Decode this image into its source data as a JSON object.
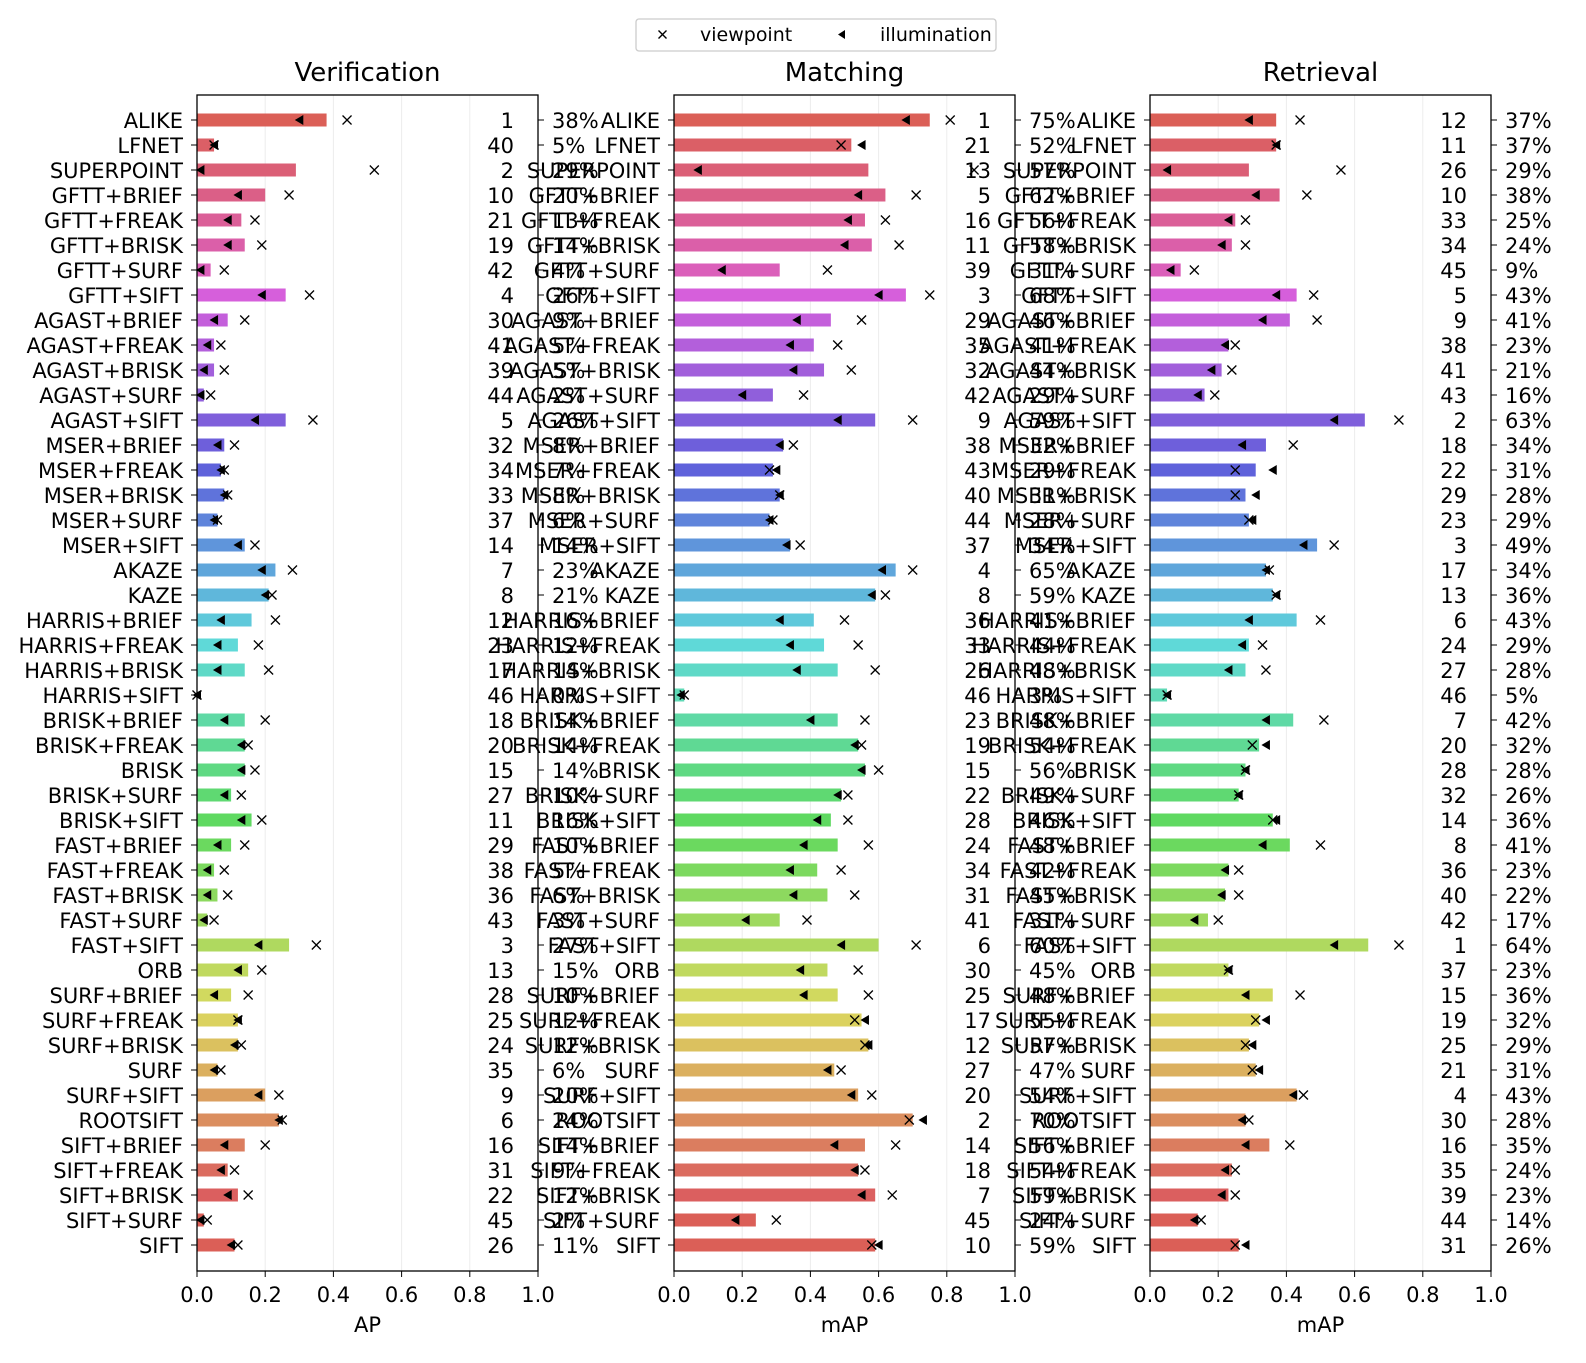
{
  "legend": {
    "entries": [
      {
        "marker": "x-marker",
        "label": "viewpoint"
      },
      {
        "marker": "left-triangle-marker",
        "label": "illumination"
      }
    ],
    "placement": "top-center"
  },
  "methods": [
    "ALIKE",
    "LFNET",
    "SUPERPOINT",
    "GFTT+BRIEF",
    "GFTT+FREAK",
    "GFTT+BRISK",
    "GFTT+SURF",
    "GFTT+SIFT",
    "AGAST+BRIEF",
    "AGAST+FREAK",
    "AGAST+BRISK",
    "AGAST+SURF",
    "AGAST+SIFT",
    "MSER+BRIEF",
    "MSER+FREAK",
    "MSER+BRISK",
    "MSER+SURF",
    "MSER+SIFT",
    "AKAZE",
    "KAZE",
    "HARRIS+BRIEF",
    "HARRIS+FREAK",
    "HARRIS+BRISK",
    "HARRIS+SIFT",
    "BRISK+BRIEF",
    "BRISK+FREAK",
    "BRISK",
    "BRISK+SURF",
    "BRISK+SIFT",
    "FAST+BRIEF",
    "FAST+FREAK",
    "FAST+BRISK",
    "FAST+SURF",
    "FAST+SIFT",
    "ORB",
    "SURF+BRIEF",
    "SURF+FREAK",
    "SURF+BRISK",
    "SURF",
    "SURF+SIFT",
    "ROOTSIFT",
    "SIFT+BRIEF",
    "SIFT+FREAK",
    "SIFT+BRISK",
    "SIFT+SURF",
    "SIFT"
  ],
  "colors": [
    "#db5f57",
    "#db5f66",
    "#db5f76",
    "#db5f87",
    "#db5f98",
    "#db5fa9",
    "#db5fba",
    "#d65fdb",
    "#c45fdb",
    "#b35fdb",
    "#a25fdb",
    "#905fdb",
    "#7f5fdb",
    "#6e5fdb",
    "#5f62db",
    "#5f73db",
    "#5f84db",
    "#5f95db",
    "#5fa6db",
    "#5fb7db",
    "#5fc9db",
    "#5fd9d8",
    "#5fd9c7",
    "#5fd9b6",
    "#5fd9a5",
    "#5fd994",
    "#5fd983",
    "#5fd972",
    "#5fd961",
    "#6bd95f",
    "#7cd95f",
    "#8dd95f",
    "#9ed95f",
    "#afd95f",
    "#c0d95f",
    "#d1d95f",
    "#dbd25f",
    "#dbc15f",
    "#dbb05f",
    "#db9f5f",
    "#db8e5f",
    "#db7d5f",
    "#db6c5f",
    "#db5f5f",
    "#db5f57",
    "#db5f57"
  ],
  "chart_data": [
    {
      "type": "bar",
      "orientation": "horizontal",
      "title": "Verification",
      "xlabel": "AP",
      "xlim": [
        0,
        1
      ],
      "xticks": [
        "0.0",
        "0.2",
        "0.4",
        "0.6",
        "0.8",
        "1.0"
      ],
      "grid": "x",
      "categories_ref": "methods",
      "values": [
        0.38,
        0.05,
        0.29,
        0.2,
        0.13,
        0.14,
        0.04,
        0.26,
        0.09,
        0.05,
        0.05,
        0.02,
        0.26,
        0.08,
        0.07,
        0.08,
        0.06,
        0.14,
        0.23,
        0.21,
        0.16,
        0.12,
        0.14,
        0.0,
        0.14,
        0.14,
        0.14,
        0.1,
        0.16,
        0.1,
        0.05,
        0.06,
        0.03,
        0.27,
        0.15,
        0.1,
        0.12,
        0.12,
        0.06,
        0.2,
        0.24,
        0.14,
        0.09,
        0.12,
        0.02,
        0.11
      ],
      "viewpoint": [
        0.44,
        0.05,
        0.52,
        0.27,
        0.17,
        0.19,
        0.08,
        0.33,
        0.14,
        0.07,
        0.08,
        0.04,
        0.34,
        0.11,
        0.08,
        0.09,
        0.06,
        0.17,
        0.28,
        0.22,
        0.23,
        0.18,
        0.21,
        0.0,
        0.2,
        0.15,
        0.17,
        0.13,
        0.19,
        0.14,
        0.08,
        0.09,
        0.05,
        0.35,
        0.19,
        0.15,
        0.12,
        0.13,
        0.07,
        0.24,
        0.25,
        0.2,
        0.11,
        0.15,
        0.03,
        0.12
      ],
      "illumination": [
        0.3,
        0.05,
        0.01,
        0.12,
        0.09,
        0.09,
        0.01,
        0.19,
        0.05,
        0.03,
        0.02,
        0.01,
        0.17,
        0.06,
        0.07,
        0.08,
        0.05,
        0.12,
        0.19,
        0.2,
        0.07,
        0.06,
        0.06,
        0.0,
        0.08,
        0.13,
        0.13,
        0.08,
        0.13,
        0.06,
        0.03,
        0.03,
        0.02,
        0.18,
        0.12,
        0.05,
        0.12,
        0.11,
        0.05,
        0.18,
        0.24,
        0.08,
        0.07,
        0.09,
        0.01,
        0.1
      ],
      "ranks": [
        "1",
        "40",
        "2",
        "10",
        "21",
        "19",
        "42",
        "4",
        "30",
        "41",
        "39",
        "44",
        "5",
        "32",
        "34",
        "33",
        "37",
        "14",
        "7",
        "8",
        "12",
        "23",
        "17",
        "46",
        "18",
        "20",
        "15",
        "27",
        "11",
        "29",
        "38",
        "36",
        "43",
        "3",
        "13",
        "28",
        "25",
        "24",
        "35",
        "9",
        "6",
        "16",
        "31",
        "22",
        "45",
        "26"
      ],
      "percents": [
        "38%",
        "5%",
        "29%",
        "20%",
        "13%",
        "14%",
        "4%",
        "26%",
        "9%",
        "5%",
        "5%",
        "2%",
        "26%",
        "8%",
        "7%",
        "8%",
        "6%",
        "14%",
        "23%",
        "21%",
        "16%",
        "12%",
        "14%",
        "0%",
        "14%",
        "14%",
        "14%",
        "10%",
        "16%",
        "10%",
        "5%",
        "6%",
        "3%",
        "27%",
        "15%",
        "10%",
        "12%",
        "12%",
        "6%",
        "20%",
        "24%",
        "14%",
        "9%",
        "12%",
        "2%",
        "11%"
      ]
    },
    {
      "type": "bar",
      "orientation": "horizontal",
      "title": "Matching",
      "xlabel": "mAP",
      "xlim": [
        0,
        1
      ],
      "xticks": [
        "0.0",
        "0.2",
        "0.4",
        "0.6",
        "0.8",
        "1.0"
      ],
      "grid": "x",
      "categories_ref": "methods",
      "values": [
        0.75,
        0.52,
        0.57,
        0.62,
        0.56,
        0.58,
        0.31,
        0.68,
        0.46,
        0.41,
        0.44,
        0.29,
        0.59,
        0.32,
        0.29,
        0.31,
        0.28,
        0.34,
        0.65,
        0.59,
        0.41,
        0.44,
        0.48,
        0.03,
        0.48,
        0.54,
        0.56,
        0.49,
        0.46,
        0.48,
        0.42,
        0.45,
        0.31,
        0.6,
        0.45,
        0.48,
        0.55,
        0.57,
        0.47,
        0.54,
        0.7,
        0.56,
        0.54,
        0.59,
        0.24,
        0.59
      ],
      "viewpoint": [
        0.81,
        0.49,
        0.88,
        0.71,
        0.62,
        0.66,
        0.45,
        0.75,
        0.55,
        0.48,
        0.52,
        0.38,
        0.7,
        0.35,
        0.28,
        0.31,
        0.29,
        0.37,
        0.7,
        0.62,
        0.5,
        0.54,
        0.59,
        0.03,
        0.56,
        0.55,
        0.6,
        0.51,
        0.51,
        0.57,
        0.49,
        0.53,
        0.39,
        0.71,
        0.54,
        0.57,
        0.53,
        0.56,
        0.49,
        0.58,
        0.69,
        0.65,
        0.56,
        0.64,
        0.3,
        0.58
      ],
      "illumination": [
        0.68,
        0.55,
        0.07,
        0.54,
        0.51,
        0.5,
        0.14,
        0.6,
        0.36,
        0.34,
        0.35,
        0.2,
        0.48,
        0.31,
        0.3,
        0.31,
        0.28,
        0.33,
        0.61,
        0.58,
        0.31,
        0.34,
        0.36,
        0.02,
        0.4,
        0.53,
        0.55,
        0.48,
        0.42,
        0.38,
        0.34,
        0.35,
        0.21,
        0.49,
        0.37,
        0.38,
        0.56,
        0.57,
        0.45,
        0.52,
        0.73,
        0.47,
        0.53,
        0.55,
        0.18,
        0.6
      ],
      "ranks": [
        "1",
        "21",
        "13",
        "5",
        "16",
        "11",
        "39",
        "3",
        "29",
        "35",
        "32",
        "42",
        "9",
        "38",
        "43",
        "40",
        "44",
        "37",
        "4",
        "8",
        "36",
        "33",
        "26",
        "46",
        "23",
        "19",
        "15",
        "22",
        "28",
        "24",
        "34",
        "31",
        "41",
        "6",
        "30",
        "25",
        "17",
        "12",
        "27",
        "20",
        "2",
        "14",
        "18",
        "7",
        "45",
        "10"
      ],
      "percents": [
        "75%",
        "52%",
        "57%",
        "62%",
        "56%",
        "58%",
        "31%",
        "68%",
        "46%",
        "41%",
        "44%",
        "29%",
        "59%",
        "32%",
        "29%",
        "31%",
        "28%",
        "34%",
        "65%",
        "59%",
        "41%",
        "44%",
        "48%",
        "3%",
        "48%",
        "54%",
        "56%",
        "49%",
        "46%",
        "48%",
        "42%",
        "45%",
        "31%",
        "60%",
        "45%",
        "48%",
        "55%",
        "57%",
        "47%",
        "54%",
        "70%",
        "56%",
        "54%",
        "59%",
        "24%",
        "59%"
      ]
    },
    {
      "type": "bar",
      "orientation": "horizontal",
      "title": "Retrieval",
      "xlabel": "mAP",
      "xlim": [
        0,
        1
      ],
      "xticks": [
        "0.0",
        "0.2",
        "0.4",
        "0.6",
        "0.8",
        "1.0"
      ],
      "grid": "x",
      "categories_ref": "methods",
      "values": [
        0.37,
        0.37,
        0.29,
        0.38,
        0.25,
        0.24,
        0.09,
        0.43,
        0.41,
        0.23,
        0.21,
        0.16,
        0.63,
        0.34,
        0.31,
        0.28,
        0.29,
        0.49,
        0.34,
        0.36,
        0.43,
        0.29,
        0.28,
        0.05,
        0.42,
        0.32,
        0.28,
        0.26,
        0.36,
        0.41,
        0.23,
        0.22,
        0.17,
        0.64,
        0.23,
        0.36,
        0.32,
        0.29,
        0.31,
        0.43,
        0.28,
        0.35,
        0.24,
        0.23,
        0.14,
        0.26
      ],
      "viewpoint": [
        0.44,
        0.37,
        0.56,
        0.46,
        0.28,
        0.28,
        0.13,
        0.48,
        0.49,
        0.25,
        0.24,
        0.19,
        0.73,
        0.42,
        0.25,
        0.25,
        0.29,
        0.54,
        0.35,
        0.37,
        0.5,
        0.33,
        0.34,
        0.05,
        0.51,
        0.3,
        0.28,
        0.26,
        0.36,
        0.5,
        0.26,
        0.26,
        0.2,
        0.73,
        0.23,
        0.44,
        0.31,
        0.28,
        0.3,
        0.45,
        0.29,
        0.41,
        0.25,
        0.25,
        0.15,
        0.25
      ],
      "illumination": [
        0.29,
        0.37,
        0.05,
        0.31,
        0.23,
        0.21,
        0.06,
        0.37,
        0.33,
        0.22,
        0.18,
        0.14,
        0.54,
        0.27,
        0.36,
        0.31,
        0.3,
        0.45,
        0.34,
        0.37,
        0.29,
        0.27,
        0.23,
        0.05,
        0.34,
        0.34,
        0.28,
        0.26,
        0.37,
        0.33,
        0.22,
        0.21,
        0.13,
        0.54,
        0.23,
        0.28,
        0.34,
        0.3,
        0.32,
        0.42,
        0.27,
        0.28,
        0.22,
        0.21,
        0.13,
        0.28
      ],
      "ranks": [
        "12",
        "11",
        "26",
        "10",
        "33",
        "34",
        "45",
        "5",
        "9",
        "38",
        "41",
        "43",
        "2",
        "18",
        "22",
        "29",
        "23",
        "3",
        "17",
        "13",
        "6",
        "24",
        "27",
        "46",
        "7",
        "20",
        "28",
        "32",
        "14",
        "8",
        "36",
        "40",
        "42",
        "1",
        "37",
        "15",
        "19",
        "25",
        "21",
        "4",
        "30",
        "16",
        "35",
        "39",
        "44",
        "31"
      ],
      "percents": [
        "37%",
        "37%",
        "29%",
        "38%",
        "25%",
        "24%",
        "9%",
        "43%",
        "41%",
        "23%",
        "21%",
        "16%",
        "63%",
        "34%",
        "31%",
        "28%",
        "29%",
        "49%",
        "34%",
        "36%",
        "43%",
        "29%",
        "28%",
        "5%",
        "42%",
        "32%",
        "28%",
        "26%",
        "36%",
        "41%",
        "23%",
        "22%",
        "17%",
        "64%",
        "23%",
        "36%",
        "32%",
        "29%",
        "31%",
        "43%",
        "28%",
        "35%",
        "24%",
        "23%",
        "14%",
        "26%"
      ]
    }
  ]
}
